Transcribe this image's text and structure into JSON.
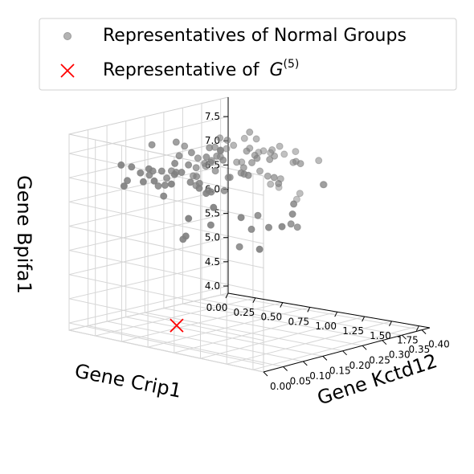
{
  "chart_data": {
    "type": "scatter",
    "projection": "3d",
    "grid": true,
    "legend_placement": "top",
    "x_axis": {
      "label": "Gene Crip1",
      "ticks": [
        "0.00",
        "0.25",
        "0.50",
        "0.75",
        "1.00",
        "1.25",
        "1.50",
        "1.75"
      ],
      "range": [
        0.0,
        1.85
      ]
    },
    "y_axis": {
      "label": "Gene Kctd12",
      "ticks": [
        "0.00",
        "0.05",
        "0.10",
        "0.15",
        "0.20",
        "0.25",
        "0.30",
        "0.35",
        "0.40"
      ],
      "range": [
        0.0,
        0.42
      ]
    },
    "z_axis": {
      "label": "Gene Bpifa1",
      "ticks": [
        "4.0",
        "4.5",
        "5.0",
        "5.5",
        "6.0",
        "6.5",
        "7.0",
        "7.5"
      ],
      "range": [
        3.85,
        7.9
      ]
    },
    "series": [
      {
        "name": "Representatives of Normal Groups",
        "marker": "circle",
        "color": "#808080",
        "points": [
          [
            0.35,
            0.3,
            7.15
          ],
          [
            0.42,
            0.28,
            7.1
          ],
          [
            0.55,
            0.32,
            7.25
          ],
          [
            0.38,
            0.25,
            7.0
          ],
          [
            0.6,
            0.22,
            7.3
          ],
          [
            0.48,
            0.2,
            7.05
          ],
          [
            0.7,
            0.27,
            7.35
          ],
          [
            0.32,
            0.18,
            6.95
          ],
          [
            0.65,
            0.35,
            7.2
          ],
          [
            0.5,
            0.15,
            7.4
          ],
          [
            0.78,
            0.24,
            7.1
          ],
          [
            0.44,
            0.33,
            6.9
          ],
          [
            0.58,
            0.12,
            7.15
          ],
          [
            0.85,
            0.3,
            7.25
          ],
          [
            0.4,
            0.1,
            7.05
          ],
          [
            0.72,
            0.16,
            7.45
          ],
          [
            0.36,
            0.36,
            7.3
          ],
          [
            0.62,
            0.08,
            6.98
          ],
          [
            0.9,
            0.2,
            7.12
          ],
          [
            0.52,
            0.27,
            7.5
          ],
          [
            0.46,
            0.06,
            7.2
          ],
          [
            0.8,
            0.12,
            7.02
          ],
          [
            0.68,
            0.31,
            6.85
          ],
          [
            0.3,
            0.22,
            7.38
          ],
          [
            0.95,
            0.26,
            7.3
          ],
          [
            0.56,
            0.04,
            7.1
          ],
          [
            0.74,
            0.09,
            7.28
          ],
          [
            0.42,
            0.14,
            6.92
          ],
          [
            0.88,
            0.34,
            7.05
          ],
          [
            0.64,
            0.19,
            7.55
          ],
          [
            1.0,
            0.18,
            7.18
          ],
          [
            0.34,
            0.07,
            7.25
          ],
          [
            0.5,
            0.37,
            7.08
          ],
          [
            0.82,
            0.05,
            7.35
          ],
          [
            0.6,
            0.25,
            6.8
          ],
          [
            1.05,
            0.3,
            7.22
          ],
          [
            0.45,
            0.02,
            7.0
          ],
          [
            0.76,
            0.38,
            7.15
          ],
          [
            0.92,
            0.11,
            6.95
          ],
          [
            0.38,
            0.29,
            7.45
          ],
          [
            1.1,
            0.23,
            7.05
          ],
          [
            0.66,
            0.13,
            7.32
          ],
          [
            0.54,
            0.34,
            7.4
          ],
          [
            0.98,
            0.07,
            7.1
          ],
          [
            0.4,
            0.17,
            7.6
          ],
          [
            0.86,
            0.28,
            6.88
          ],
          [
            0.7,
            0.03,
            7.2
          ],
          [
            1.15,
            0.15,
            7.28
          ],
          [
            0.48,
            0.24,
            7.12
          ],
          [
            0.62,
            0.39,
            7.02
          ],
          [
            0.58,
            0.21,
            7.18
          ],
          [
            0.36,
            0.12,
            7.08
          ],
          [
            0.84,
            0.17,
            7.42
          ],
          [
            0.74,
            0.28,
            7.26
          ],
          [
            0.44,
            0.26,
            7.34
          ],
          [
            0.52,
            0.09,
            6.9
          ],
          [
            0.66,
            0.2,
            7.06
          ],
          [
            0.94,
            0.23,
            7.38
          ],
          [
            1.02,
            0.09,
            7.0
          ],
          [
            0.3,
            0.33,
            7.12
          ],
          [
            0.55,
            0.18,
            6.75
          ],
          [
            0.8,
            0.33,
            6.7
          ],
          [
            0.28,
            0.14,
            7.55
          ],
          [
            1.2,
            0.27,
            7.3
          ],
          [
            0.68,
            0.06,
            6.82
          ],
          [
            0.42,
            0.38,
            7.0
          ],
          [
            0.9,
            0.02,
            7.25
          ],
          [
            0.62,
            0.3,
            7.65
          ],
          [
            0.35,
            0.04,
            7.35
          ],
          [
            0.76,
            0.21,
            6.95
          ],
          [
            1.08,
            0.35,
            7.15
          ],
          [
            0.58,
            0.16,
            7.48
          ],
          [
            0.32,
            0.27,
            6.88
          ],
          [
            0.86,
            0.08,
            7.15
          ],
          [
            0.5,
            0.3,
            6.98
          ],
          [
            0.72,
            0.35,
            7.3
          ],
          [
            0.46,
            0.21,
            7.22
          ],
          [
            0.96,
            0.14,
            6.9
          ],
          [
            0.64,
            0.1,
            7.4
          ],
          [
            0.4,
            0.32,
            7.25
          ],
          [
            1.12,
            0.05,
            7.1
          ],
          [
            0.54,
            0.06,
            7.32
          ],
          [
            0.78,
            0.18,
            7.58
          ],
          [
            0.38,
            0.22,
            6.8
          ],
          [
            0.6,
            0.36,
            7.1
          ],
          [
            1.25,
            0.2,
            7.05
          ],
          [
            0.48,
            0.11,
            7.15
          ],
          [
            0.82,
            0.25,
            7.2
          ],
          [
            0.3,
            0.07,
            6.95
          ],
          [
            0.7,
            0.14,
            7.08
          ],
          [
            1.3,
            0.02,
            6.95
          ],
          [
            1.45,
            0.05,
            6.75
          ],
          [
            1.6,
            0.08,
            6.55
          ],
          [
            1.75,
            0.1,
            6.85
          ],
          [
            1.35,
            0.12,
            6.6
          ],
          [
            1.55,
            0.15,
            6.45
          ],
          [
            1.7,
            0.03,
            6.25
          ],
          [
            1.8,
            0.06,
            6.7
          ],
          [
            1.5,
            0.18,
            6.3
          ],
          [
            1.4,
            0.09,
            6.4
          ],
          [
            1.65,
            0.13,
            6.95
          ],
          [
            1.2,
            0.04,
            6.5
          ],
          [
            1.1,
            0.01,
            6.65
          ],
          [
            1.0,
            0.03,
            6.2
          ],
          [
            0.9,
            0.05,
            6.05
          ],
          [
            1.25,
            0.1,
            5.95
          ],
          [
            0.8,
            0.38,
            6.3
          ],
          [
            0.95,
            0.4,
            6.5
          ],
          [
            0.6,
            0.36,
            6.45
          ],
          [
            0.7,
            0.4,
            6.1
          ],
          [
            1.05,
            0.37,
            6.6
          ],
          [
            0.5,
            0.41,
            6.25
          ]
        ]
      },
      {
        "name": "Representative of G^(5)",
        "marker": "x",
        "color": "#ff0000",
        "points": [
          [
            0.95,
            0.02,
            4.35
          ]
        ]
      }
    ]
  },
  "legend": {
    "items": [
      {
        "label": "Representatives of Normal Groups",
        "marker": "circle",
        "color": "#808080"
      },
      {
        "label": "Representative of ",
        "math_base": "G",
        "math_sup": "(5)",
        "marker": "x",
        "color": "#ff0000"
      }
    ]
  },
  "axis_labels": {
    "x": "Gene Crip1",
    "y": "Gene Kctd12",
    "z": "Gene Bpifa1"
  }
}
